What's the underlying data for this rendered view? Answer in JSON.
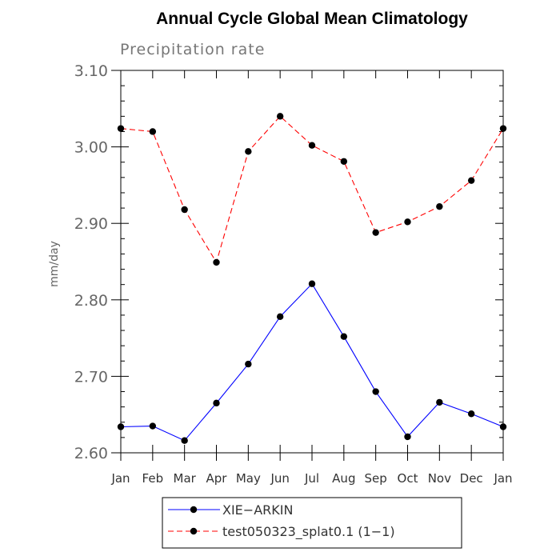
{
  "chart_data": {
    "type": "line",
    "title": "Annual Cycle Global Mean Climatology",
    "subtitle": "Precipitation rate",
    "ylabel": "mm/day",
    "xlabel": "",
    "categories": [
      "Jan",
      "Feb",
      "Mar",
      "Apr",
      "May",
      "Jun",
      "Jul",
      "Aug",
      "Sep",
      "Oct",
      "Nov",
      "Dec",
      "Jan"
    ],
    "ylim": [
      2.6,
      3.1
    ],
    "yticks": [
      2.6,
      2.7,
      2.8,
      2.9,
      3.0,
      3.1
    ],
    "ytick_labels": [
      "2.60",
      "2.70",
      "2.80",
      "2.90",
      "3.00",
      "3.10"
    ],
    "series": [
      {
        "name": "XIE−ARKIN",
        "color": "#0000ff",
        "dash": "solid",
        "values": [
          2.634,
          2.635,
          2.616,
          2.665,
          2.716,
          2.778,
          2.821,
          2.752,
          2.68,
          2.621,
          2.666,
          2.651,
          2.634
        ]
      },
      {
        "name": "test050323_splat0.1 (1−1)",
        "color": "#ff0000",
        "dash": "dashed",
        "values": [
          3.024,
          3.02,
          2.918,
          2.849,
          2.994,
          3.04,
          3.002,
          2.981,
          2.888,
          2.902,
          2.922,
          2.956,
          3.024
        ]
      }
    ],
    "legend_position": "bottom"
  }
}
